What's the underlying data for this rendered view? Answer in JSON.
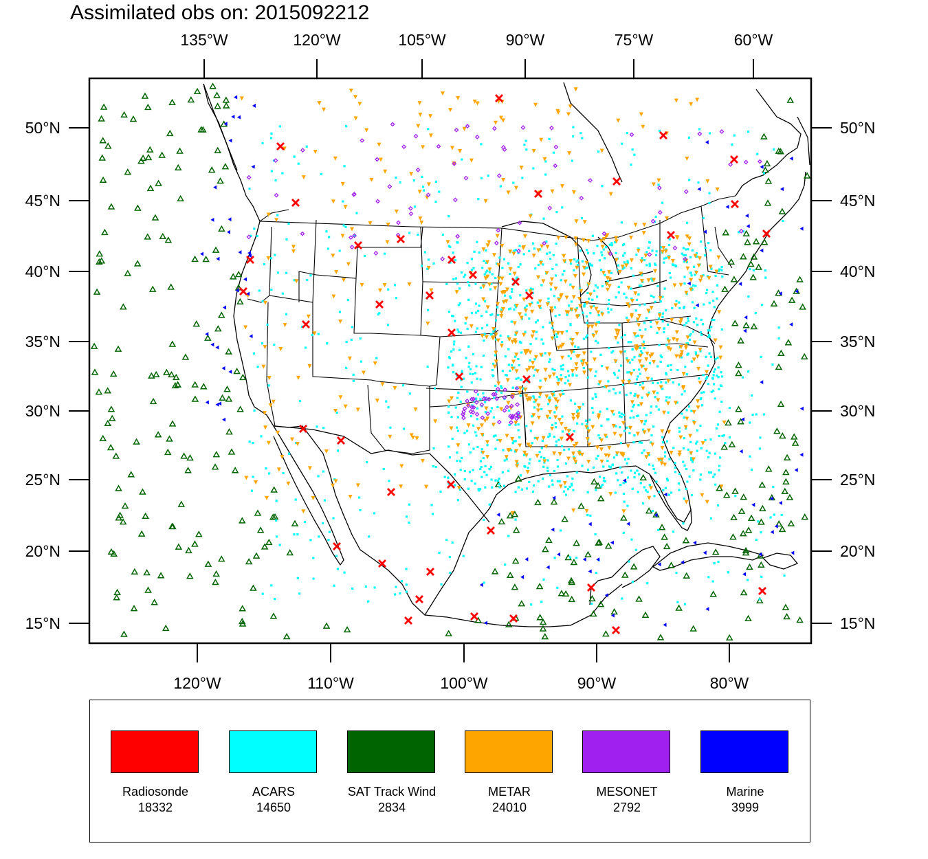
{
  "title": "Assimilated obs on: 2015092212",
  "top_axis_labels": [
    "135°W",
    "120°W",
    "105°W",
    "90°W",
    "75°W",
    "60°W"
  ],
  "bottom_axis_labels": [
    "120°W",
    "110°W",
    "100°W",
    "90°W",
    "80°W"
  ],
  "lat_labels": [
    "50°N",
    "45°N",
    "40°N",
    "35°N",
    "30°N",
    "25°N",
    "20°N",
    "15°N"
  ],
  "legend": [
    {
      "name": "Radiosonde",
      "count": "18332",
      "color": "#ff0000"
    },
    {
      "name": "ACARS",
      "count": "14650",
      "color": "#00ffff"
    },
    {
      "name": "SAT Track Wind",
      "count": "2834",
      "color": "#006400"
    },
    {
      "name": "METAR",
      "count": "24010",
      "color": "#ffa500"
    },
    {
      "name": "MESONET",
      "count": "2792",
      "color": "#a020f0"
    },
    {
      "name": "Marine",
      "count": "3999",
      "color": "#0000ff"
    }
  ]
}
